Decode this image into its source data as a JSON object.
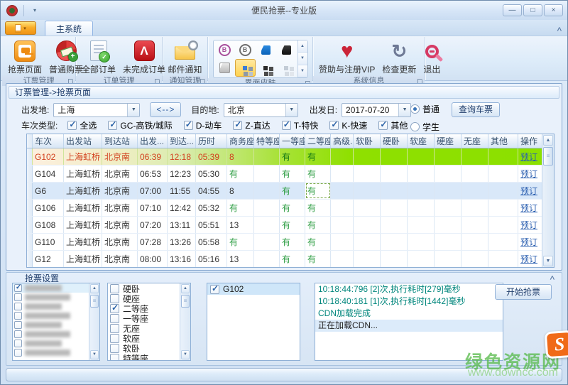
{
  "window": {
    "title": "便民抢票--专业版",
    "controls": {
      "minimize": "—",
      "maximize": "□",
      "close": "×"
    }
  },
  "ribbon": {
    "tab": "主系统",
    "groups": [
      {
        "label": "订票管理",
        "buttons": [
          {
            "label": "抢票页面"
          },
          {
            "label": "普通购票"
          }
        ]
      },
      {
        "label": "订单管理",
        "buttons": [
          {
            "label": "全部订单"
          },
          {
            "label": "未完成订单"
          }
        ]
      },
      {
        "label": "通知管理",
        "buttons": [
          {
            "label": "邮件通知"
          }
        ]
      },
      {
        "label": "界面皮肤",
        "skins": [
          {
            "name": "skin-circle-purple",
            "selected": false
          },
          {
            "name": "skin-circle-gray",
            "selected": false
          },
          {
            "name": "skin-office-blue",
            "selected": false
          },
          {
            "name": "skin-office-black",
            "selected": false
          },
          {
            "name": "skin-office-white",
            "selected": false
          },
          {
            "name": "skin-blocks-blue",
            "selected": true
          },
          {
            "name": "skin-blocks-black",
            "selected": false
          },
          {
            "name": "skin-blocks-gray",
            "selected": false
          }
        ]
      },
      {
        "label": "系统信息",
        "buttons": [
          {
            "label": "赞助与注册VIP"
          },
          {
            "label": "检查更新"
          },
          {
            "label": "退出"
          }
        ]
      }
    ]
  },
  "breadcrumb": "订票管理->抢票页面",
  "search_form": {
    "from_label": "出发地:",
    "from_value": "上海",
    "swap_label": "<-->",
    "to_label": "目的地:",
    "to_value": "北京",
    "date_label": "出发日:",
    "date_value": "2017-07-20",
    "query_button": "查询车票",
    "ticket_kind": {
      "normal": "普通",
      "student": "学生",
      "selected": "普通"
    },
    "type_label": "车次类型:",
    "train_types": [
      {
        "label": "全选",
        "checked": true
      },
      {
        "label": "GC-高铁/城际",
        "checked": true
      },
      {
        "label": "D-动车",
        "checked": true
      },
      {
        "label": "Z-直达",
        "checked": true
      },
      {
        "label": "T-特快",
        "checked": true
      },
      {
        "label": "K-快速",
        "checked": true
      },
      {
        "label": "其他",
        "checked": true
      }
    ]
  },
  "table": {
    "columns": [
      "车次",
      "出发站",
      "到达站",
      "出发...",
      "到达...",
      "历时",
      "商务座",
      "特等座",
      "一等座",
      "二等座",
      "高级...",
      "软卧",
      "硬卧",
      "软座",
      "硬座",
      "无座",
      "其他",
      "操作"
    ],
    "rows": [
      {
        "state": "grab",
        "cells": [
          "G102",
          "上海虹桥",
          "北京南",
          "06:39",
          "12:18",
          "05:39",
          "8",
          "",
          "有",
          "有",
          "",
          "",
          "",
          "",
          "",
          "",
          "",
          "预订"
        ]
      },
      {
        "state": "",
        "cells": [
          "G104",
          "上海虹桥",
          "北京南",
          "06:53",
          "12:23",
          "05:30",
          "有",
          "",
          "有",
          "有",
          "",
          "",
          "",
          "",
          "",
          "",
          "",
          "预订"
        ]
      },
      {
        "state": "sel",
        "sel_cell": 9,
        "cells": [
          "G6",
          "上海虹桥",
          "北京南",
          "07:00",
          "11:55",
          "04:55",
          "8",
          "",
          "有",
          "有",
          "",
          "",
          "",
          "",
          "",
          "",
          "",
          "预订"
        ]
      },
      {
        "state": "",
        "cells": [
          "G106",
          "上海虹桥",
          "北京南",
          "07:10",
          "12:42",
          "05:32",
          "有",
          "",
          "有",
          "有",
          "",
          "",
          "",
          "",
          "",
          "",
          "",
          "预订"
        ]
      },
      {
        "state": "",
        "cells": [
          "G108",
          "上海虹桥",
          "北京南",
          "07:20",
          "13:11",
          "05:51",
          "13",
          "",
          "有",
          "有",
          "",
          "",
          "",
          "",
          "",
          "",
          "",
          "预订"
        ]
      },
      {
        "state": "",
        "cells": [
          "G110",
          "上海虹桥",
          "北京南",
          "07:28",
          "13:26",
          "05:58",
          "有",
          "",
          "有",
          "有",
          "",
          "",
          "",
          "",
          "",
          "",
          "",
          "预订"
        ]
      },
      {
        "state": "",
        "cells": [
          "G12",
          "上海虹桥",
          "北京南",
          "08:00",
          "13:16",
          "05:16",
          "13",
          "",
          "有",
          "有",
          "",
          "",
          "",
          "",
          "",
          "",
          "",
          "预订"
        ]
      }
    ]
  },
  "grab_panel": {
    "title": "抢票设置",
    "passengers": {
      "note": "names blurred in source",
      "items": [
        {
          "checked": true,
          "selected": true
        },
        {
          "checked": false
        },
        {
          "checked": false
        },
        {
          "checked": false
        },
        {
          "checked": false
        },
        {
          "checked": false
        },
        {
          "checked": false
        },
        {
          "checked": false
        }
      ]
    },
    "seat_options": [
      {
        "label": "硬卧",
        "checked": false
      },
      {
        "label": "硬座",
        "checked": false
      },
      {
        "label": "二等座",
        "checked": true
      },
      {
        "label": "一等座",
        "checked": false
      },
      {
        "label": "无座",
        "checked": false
      },
      {
        "label": "软座",
        "checked": false
      },
      {
        "label": "软卧",
        "checked": false
      },
      {
        "label": "特等座",
        "checked": false
      }
    ],
    "trains": [
      {
        "label": "G102",
        "checked": true,
        "selected": true
      }
    ],
    "log": [
      {
        "text": "10:18:44:796  [2]次,执行耗时[279]毫秒",
        "tone": "info"
      },
      {
        "text": "10:18:40:181  [1]次,执行耗时[1442]毫秒",
        "tone": "info"
      },
      {
        "text": "CDN加载完成",
        "tone": "info"
      },
      {
        "text": "正在加载CDN...",
        "tone": "plain",
        "selected": true
      }
    ],
    "start_button": "开始抢票"
  },
  "watermark": {
    "line1": "绿色资源网",
    "line2": "www.downcc.com",
    "badge": "S"
  }
}
